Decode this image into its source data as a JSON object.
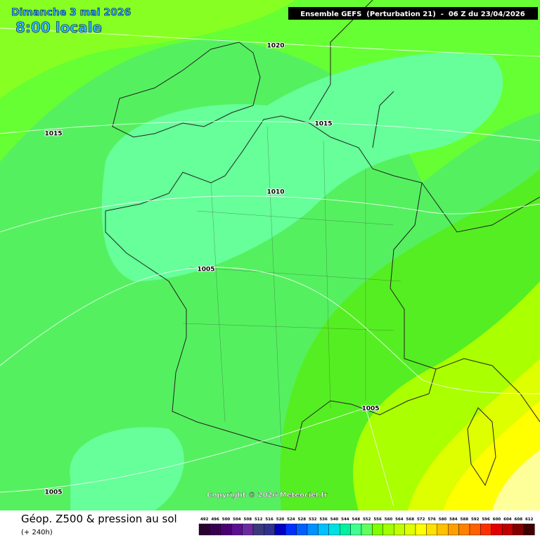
{
  "header": {
    "date": "Dimanche 3 mai 2026",
    "time": "8:00 locale",
    "model": "Ensemble GEFS  (Perturbation 21)  -  06 Z du 23/04/2026"
  },
  "isobars": [
    "1020",
    "1015",
    "1015",
    "1010",
    "1005",
    "1005",
    "1005"
  ],
  "copyright": "Copyright © 2026 Meteociel.fr",
  "footer": {
    "title": "Géop. Z500 & pression au sol",
    "range": "(+ 240h)"
  },
  "scale": {
    "values": [
      492,
      496,
      500,
      504,
      508,
      512,
      516,
      520,
      524,
      528,
      532,
      536,
      540,
      544,
      548,
      552,
      556,
      560,
      564,
      568,
      572,
      576,
      580,
      584,
      588,
      592,
      596,
      600,
      604,
      608,
      612
    ],
    "colors": [
      "#2a0030",
      "#3a0050",
      "#4a0070",
      "#5a1090",
      "#6a2aa0",
      "#3a3a7a",
      "#303090",
      "#0000c0",
      "#0030ff",
      "#0060ff",
      "#0090ff",
      "#00c0ff",
      "#00e0e0",
      "#00f0a0",
      "#40ff90",
      "#60ff60",
      "#80ff00",
      "#a0ff00",
      "#c0ff00",
      "#e0ff00",
      "#ffff00",
      "#ffe000",
      "#ffc000",
      "#ffa000",
      "#ff8000",
      "#ff6000",
      "#ff3000",
      "#e00000",
      "#c00000",
      "#800000",
      "#400000"
    ]
  }
}
